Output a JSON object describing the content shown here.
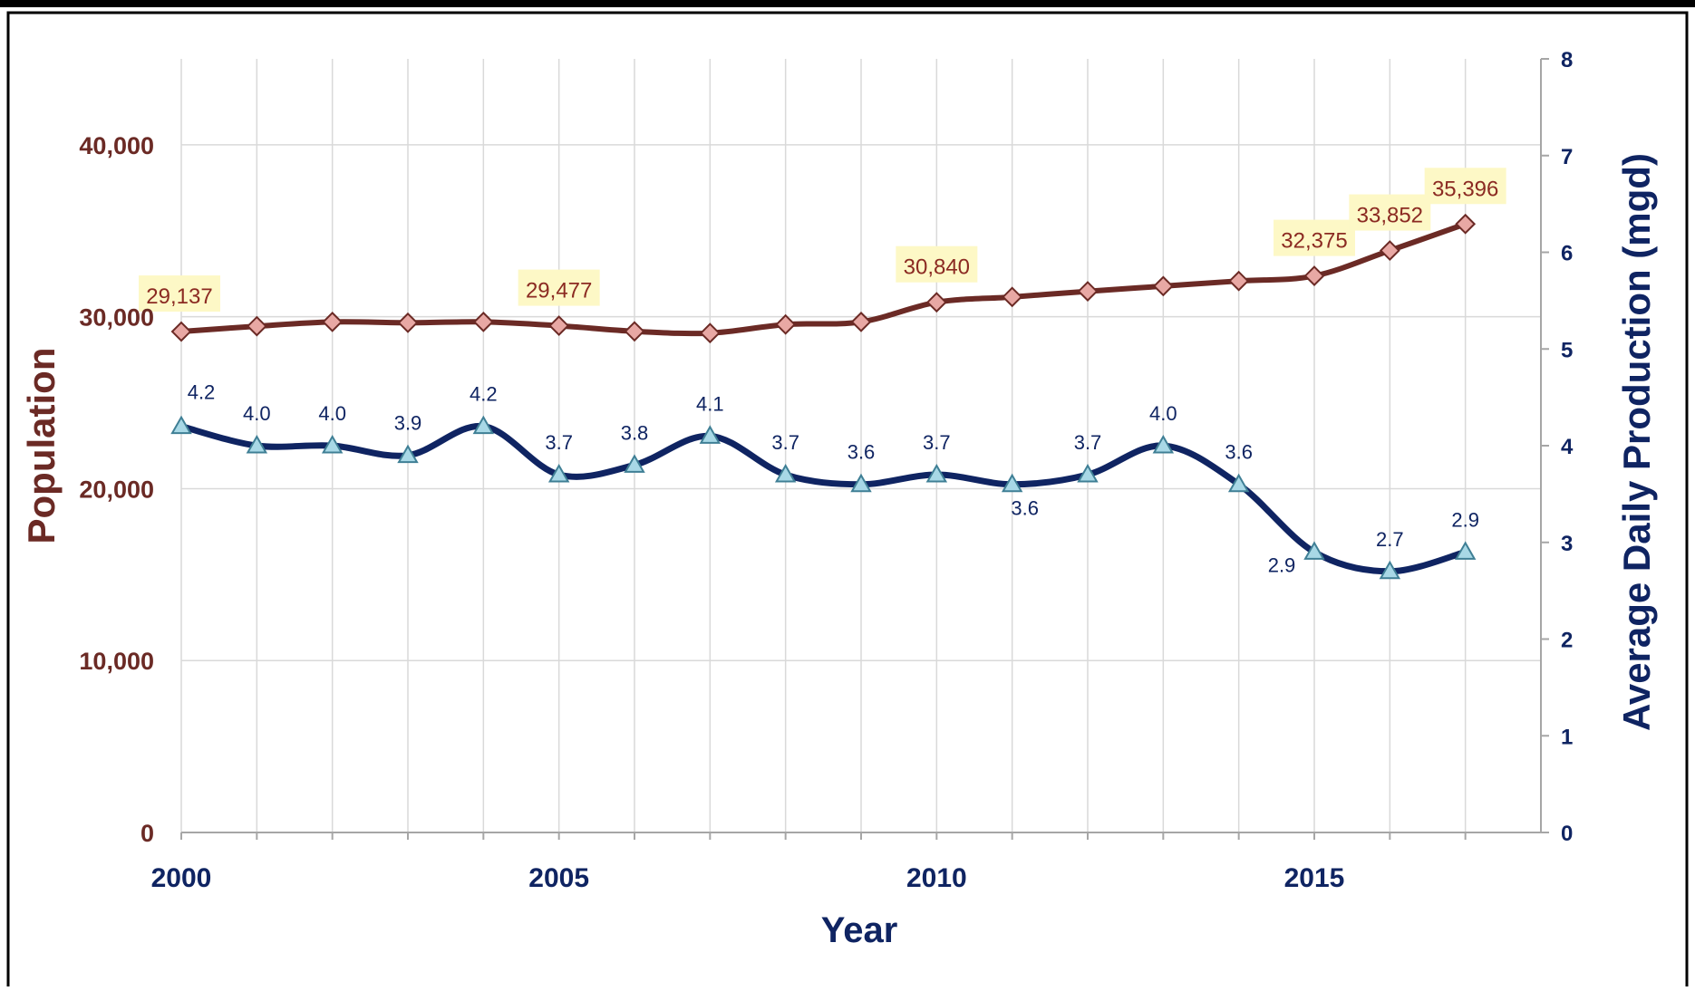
{
  "chart_data": {
    "type": "line",
    "title": "",
    "xlabel": "Year",
    "ylabel_left": "Population",
    "ylabel_right": "Average Daily Production (mgd)",
    "x": [
      2000,
      2001,
      2002,
      2003,
      2004,
      2005,
      2006,
      2007,
      2008,
      2009,
      2010,
      2011,
      2012,
      2013,
      2014,
      2015,
      2016,
      2017
    ],
    "xlim": [
      2000,
      2018
    ],
    "xticks": [
      {
        "value": 2000,
        "label": "2000"
      },
      {
        "value": 2005,
        "label": "2005"
      },
      {
        "value": 2010,
        "label": "2010"
      },
      {
        "value": 2015,
        "label": "2015"
      }
    ],
    "ylim_left": [
      0,
      45000
    ],
    "yticks_left": [
      {
        "value": 0,
        "label": "0"
      },
      {
        "value": 10000,
        "label": "10,000"
      },
      {
        "value": 20000,
        "label": "20,000"
      },
      {
        "value": 30000,
        "label": "30,000"
      },
      {
        "value": 40000,
        "label": "40,000"
      }
    ],
    "ylim_right": [
      0,
      8
    ],
    "yticks_right": [
      {
        "value": 0,
        "label": "0"
      },
      {
        "value": 1,
        "label": "1"
      },
      {
        "value": 2,
        "label": "2"
      },
      {
        "value": 3,
        "label": "3"
      },
      {
        "value": 4,
        "label": "4"
      },
      {
        "value": 5,
        "label": "5"
      },
      {
        "value": 6,
        "label": "6"
      },
      {
        "value": 7,
        "label": "7"
      },
      {
        "value": 8,
        "label": "8"
      }
    ],
    "grid": true,
    "series": [
      {
        "axis": "left",
        "color": "#6b2a25",
        "marker_fill": "#e8a8a4",
        "marker": "diamond",
        "label_color": "#8b2a22",
        "label_bg": "#fdf8c6",
        "values": [
          29137,
          29450,
          29700,
          29650,
          29700,
          29477,
          29150,
          29050,
          29550,
          29700,
          30840,
          31150,
          31480,
          31780,
          32080,
          32375,
          33852,
          35396
        ],
        "labels": [
          {
            "index": 0,
            "text": "29,137"
          },
          {
            "index": 5,
            "text": "29,477"
          },
          {
            "index": 10,
            "text": "30,840"
          },
          {
            "index": 15,
            "text": "32,375"
          },
          {
            "index": 16,
            "text": "33,852"
          },
          {
            "index": 17,
            "text": "35,396"
          }
        ]
      },
      {
        "axis": "right",
        "color": "#0f2462",
        "marker_fill": "#a8d8e6",
        "marker": "triangle",
        "label_color": "#0f2462",
        "values": [
          4.2,
          4.0,
          4.0,
          3.9,
          4.2,
          3.7,
          3.8,
          4.1,
          3.7,
          3.6,
          3.7,
          3.6,
          3.7,
          4.0,
          3.6,
          2.9,
          2.7,
          2.9
        ],
        "labels": [
          {
            "index": 0,
            "text": "4.2"
          },
          {
            "index": 1,
            "text": "4.0"
          },
          {
            "index": 2,
            "text": "4.0"
          },
          {
            "index": 3,
            "text": "3.9"
          },
          {
            "index": 4,
            "text": "4.2"
          },
          {
            "index": 5,
            "text": "3.7"
          },
          {
            "index": 6,
            "text": "3.8"
          },
          {
            "index": 7,
            "text": "4.1"
          },
          {
            "index": 8,
            "text": "3.7"
          },
          {
            "index": 9,
            "text": "3.6"
          },
          {
            "index": 10,
            "text": "3.7"
          },
          {
            "index": 11,
            "text": "3.6"
          },
          {
            "index": 12,
            "text": "3.7"
          },
          {
            "index": 13,
            "text": "4.0"
          },
          {
            "index": 14,
            "text": "3.6"
          },
          {
            "index": 15,
            "text": "2.9"
          },
          {
            "index": 16,
            "text": "2.7"
          },
          {
            "index": 17,
            "text": "2.9"
          }
        ]
      }
    ],
    "colors": {
      "left_axis_text": "#6b2a25",
      "right_axis_text": "#0f2462",
      "x_axis_text": "#0f2462",
      "grid": "#d9d9d9",
      "axis_line": "#a6a6a6",
      "frame": "#000000"
    }
  }
}
